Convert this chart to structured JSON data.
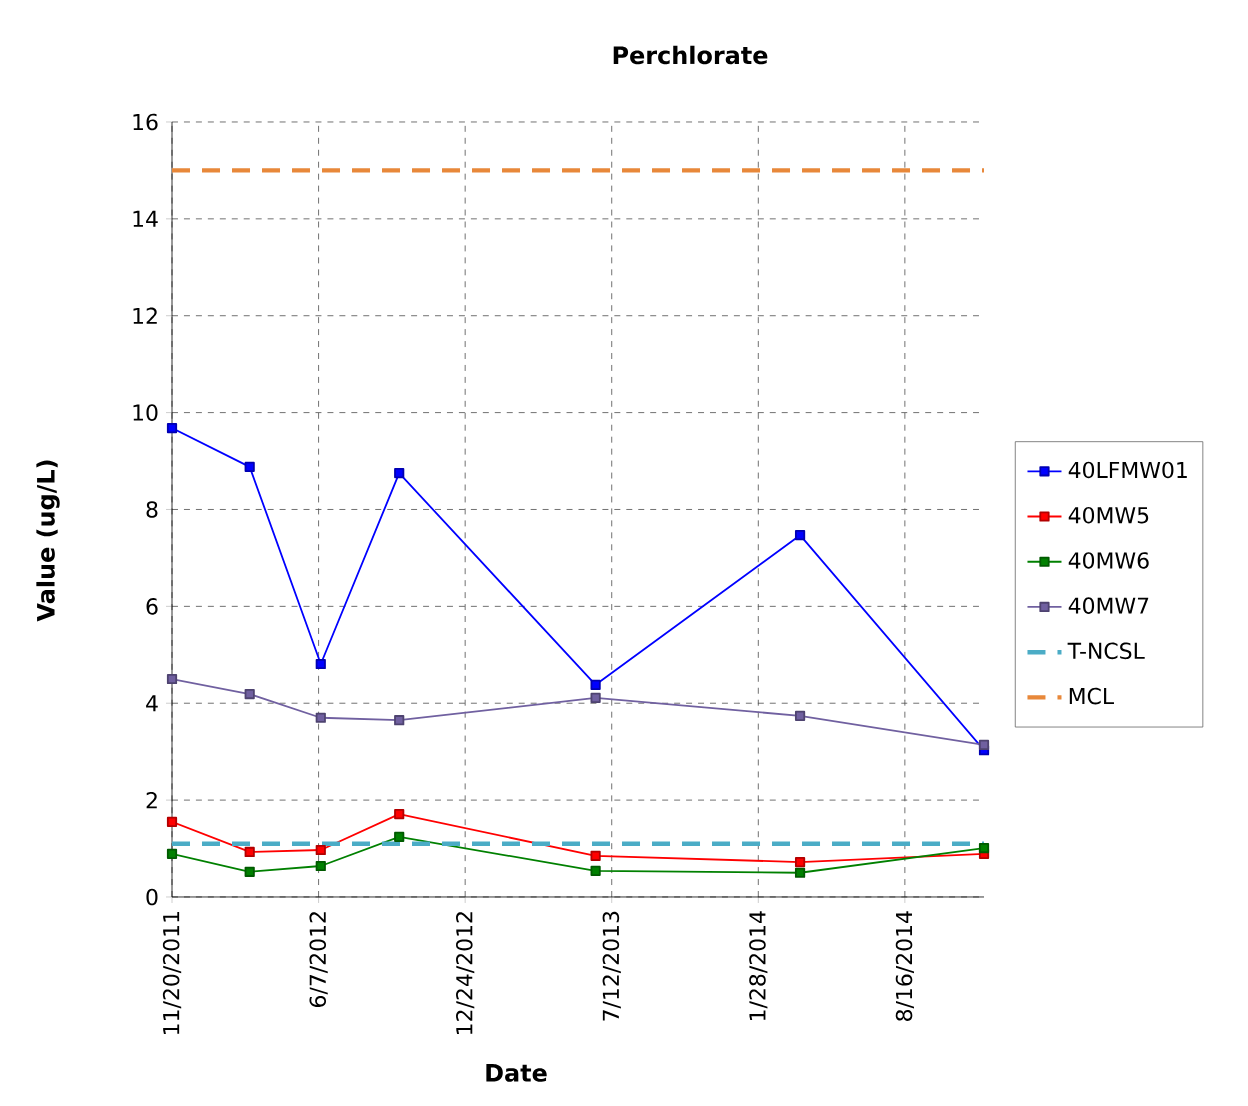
{
  "chart_data": {
    "type": "line",
    "title": "Perchlorate",
    "xlabel": "Date",
    "ylabel": "Value (ug/L)",
    "x": [
      "2011-11-20",
      "2012-03-05",
      "2012-06-10",
      "2012-09-25",
      "2013-06-20",
      "2014-03-26",
      "2014-12-02"
    ],
    "series": [
      {
        "name": "40LFMW01",
        "color": "#0000ff",
        "values": [
          9.68,
          8.88,
          4.81,
          8.75,
          4.38,
          7.47,
          3.03
        ]
      },
      {
        "name": "40MW5",
        "color": "#ff0000",
        "values": [
          1.55,
          0.93,
          0.97,
          1.71,
          0.85,
          0.72,
          0.89
        ]
      },
      {
        "name": "40MW6",
        "color": "#008000",
        "values": [
          0.89,
          0.52,
          0.64,
          1.24,
          0.54,
          0.5,
          1.01
        ]
      },
      {
        "name": "40MW7",
        "color": "#7060a0",
        "values": [
          4.5,
          4.19,
          3.7,
          3.65,
          4.11,
          3.74,
          3.14
        ]
      },
      {
        "name": "T-NCSL",
        "color": "#4bacc6",
        "x": [
          "2011-11-20",
          "2014-12-02"
        ],
        "values": [
          1.1,
          1.1
        ],
        "line_style": "dashed",
        "marker": "none"
      },
      {
        "name": "MCL",
        "color": "#e8883a",
        "x": [
          "2011-11-20",
          "2014-12-02"
        ],
        "values": [
          15,
          15
        ],
        "line_style": "dashed",
        "marker": "none"
      }
    ],
    "xlim": [
      "2011-11-20",
      "2014-12-02"
    ],
    "xticks": [
      {
        "value": "2011-11-20",
        "label": "11/20/2011"
      },
      {
        "value": "2012-06-07",
        "label": "6/7/2012"
      },
      {
        "value": "2012-12-24",
        "label": "12/24/2012"
      },
      {
        "value": "2013-07-12",
        "label": "7/12/2013"
      },
      {
        "value": "2014-01-28",
        "label": "1/28/2014"
      },
      {
        "value": "2014-08-16",
        "label": "8/16/2014"
      }
    ],
    "ylim": [
      0,
      16
    ],
    "yticks": [
      0,
      2,
      4,
      6,
      8,
      10,
      12,
      14,
      16
    ],
    "grid": true,
    "legend": "right",
    "marker": "square",
    "line_style": "solid"
  }
}
